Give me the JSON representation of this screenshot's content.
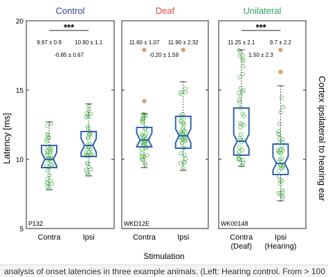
{
  "figure": {
    "y_axis_label": "Latency [ms]",
    "x_axis_label": "Stimulation",
    "right_axis_label": "Cortex ipsilateral to hearing ear",
    "caption_fragment": "analysis of onset latencies in three example animals. (Left: Hearing control. From > 100 recording"
  },
  "chart_data": [
    {
      "type": "box",
      "title": "Control",
      "title_color": "#2b3f9e",
      "panel_id": "P132",
      "ylim": [
        5,
        20
      ],
      "yticks": [
        5,
        10,
        15,
        20
      ],
      "categories": [
        "Contra",
        "Ipsi"
      ],
      "significance": "***",
      "stats": [
        "9.97 ± 0.9",
        "10.90 ± 1.1"
      ],
      "difference": "-0.85 ± 0.67",
      "boxes": [
        {
          "whisker_low": 7.8,
          "q1": 9.4,
          "median": 10.0,
          "q3": 11.0,
          "whisker_high": 12.7,
          "outliers": []
        },
        {
          "whisker_low": 8.8,
          "q1": 10.2,
          "median": 11.0,
          "q3": 12.0,
          "whisker_high": 14.0,
          "outliers": []
        }
      ]
    },
    {
      "type": "box",
      "title": "Deaf",
      "title_color": "#e04a3b",
      "panel_id": "WKD12E",
      "ylim": [
        5,
        20
      ],
      "yticks": [
        5,
        10,
        15,
        20
      ],
      "categories": [
        "Contra",
        "Ipsi"
      ],
      "significance": "",
      "stats": [
        "11.60 ± 1.07",
        "11.90 ± 2.32"
      ],
      "difference": "-0.20 ± 1.59",
      "boxes": [
        {
          "whisker_low": 9.4,
          "q1": 10.9,
          "median": 11.4,
          "q3": 12.3,
          "whisker_high": 13.3,
          "outliers": [
            14.2,
            17.9
          ]
        },
        {
          "whisker_low": 9.2,
          "q1": 10.8,
          "median": 11.7,
          "q3": 13.1,
          "whisker_high": 15.6,
          "outliers": [
            17.9
          ]
        }
      ]
    },
    {
      "type": "box",
      "title": "Unilateral",
      "title_color": "#27a35a",
      "panel_id": "WK00148",
      "ylim": [
        5,
        20
      ],
      "yticks": [
        5,
        10,
        15,
        20
      ],
      "categories": [
        "Contra\n(Deaf)",
        "Ipsi\n(Hearing)"
      ],
      "significance": "***",
      "stats": [
        "11.25 ± 2.1",
        "9.7 ± 2.2"
      ],
      "difference": "1.50 ± 2.3",
      "boxes": [
        {
          "whisker_low": 9.5,
          "q1": 10.3,
          "median": 11.3,
          "q3": 13.7,
          "whisker_high": 17.9,
          "outliers": []
        },
        {
          "whisker_low": 7.0,
          "q1": 8.9,
          "median": 9.7,
          "q3": 11.1,
          "whisker_high": 15.3,
          "outliers": [
            16.3,
            17.9
          ]
        }
      ]
    }
  ]
}
